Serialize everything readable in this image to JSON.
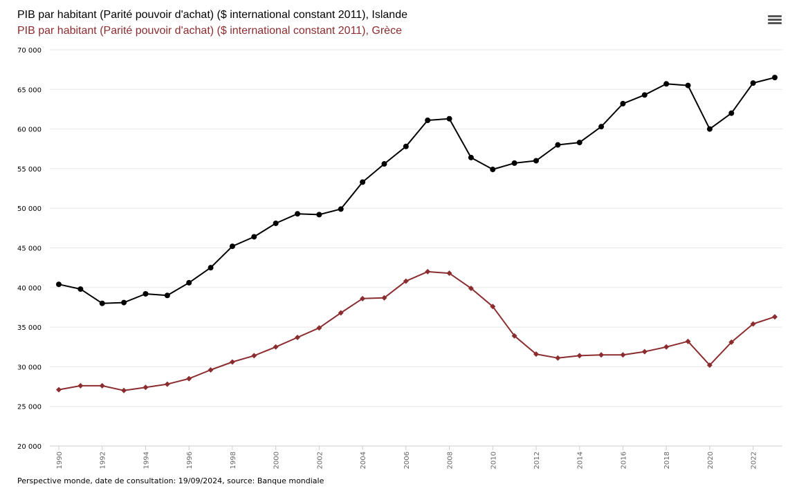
{
  "menu": {
    "icon": "hamburger-menu-icon"
  },
  "footer": {
    "text": "Perspective monde, date de consultation: 19/09/2024, source: Banque mondiale"
  },
  "chart_data": {
    "type": "line",
    "title": "PIB par habitant (Parité pouvoir d'achat) ($ international constant 2011), Islande",
    "subtitle": "PIB par habitant (Parité pouvoir d'achat) ($ international constant 2011), Grèce",
    "ylim": [
      20000,
      70000
    ],
    "yticks": [
      20000,
      25000,
      30000,
      35000,
      40000,
      45000,
      50000,
      55000,
      60000,
      65000,
      70000
    ],
    "ytick_labels": [
      "20 000",
      "25 000",
      "30 000",
      "35 000",
      "40 000",
      "45 000",
      "50 000",
      "55 000",
      "60 000",
      "65 000",
      "70 000"
    ],
    "xlim": [
      1990,
      2023
    ],
    "xticks": [
      1990,
      1992,
      1994,
      1996,
      1998,
      2000,
      2002,
      2004,
      2006,
      2008,
      2010,
      2012,
      2014,
      2016,
      2018,
      2020,
      2022
    ],
    "xtick_labels": [
      "1990",
      "1992",
      "1994",
      "1996",
      "1998",
      "2000",
      "2002",
      "2004",
      "2006",
      "2008",
      "2010",
      "2012",
      "2014",
      "2016",
      "2018",
      "2020",
      "2022"
    ],
    "grid": true,
    "x": [
      1990,
      1991,
      1992,
      1993,
      1994,
      1995,
      1996,
      1997,
      1998,
      1999,
      2000,
      2001,
      2002,
      2003,
      2004,
      2005,
      2006,
      2007,
      2008,
      2009,
      2010,
      2011,
      2012,
      2013,
      2014,
      2015,
      2016,
      2017,
      2018,
      2019,
      2020,
      2021,
      2022,
      2023
    ],
    "series": [
      {
        "color": "#000000",
        "marker": "circle",
        "values": [
          40400,
          39800,
          38000,
          38100,
          39200,
          39000,
          40600,
          42500,
          45200,
          46400,
          48100,
          49300,
          49200,
          49900,
          53300,
          55600,
          57800,
          61100,
          61300,
          56400,
          54900,
          55700,
          56000,
          58000,
          58300,
          60300,
          63200,
          64300,
          65700,
          65500,
          60000,
          62000,
          65800,
          66500
        ]
      },
      {
        "color": "#8b2c2f",
        "marker": "diamond",
        "values": [
          27100,
          27600,
          27600,
          27000,
          27400,
          27800,
          28500,
          29600,
          30600,
          31400,
          32500,
          33700,
          34900,
          36800,
          38600,
          38700,
          40800,
          42000,
          41800,
          39900,
          37600,
          33900,
          31600,
          31100,
          31400,
          31500,
          31500,
          31900,
          32500,
          33200,
          30200,
          33100,
          35400,
          36300
        ]
      }
    ]
  }
}
